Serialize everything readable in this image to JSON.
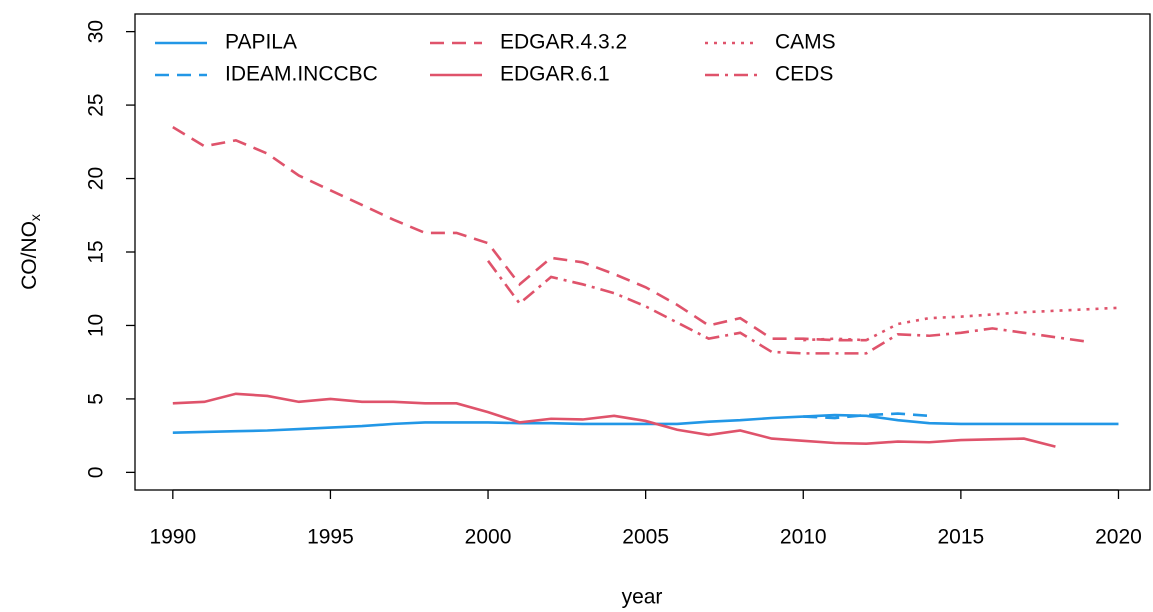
{
  "chart_data": {
    "type": "line",
    "xlabel": "year",
    "ylabel_parts": [
      "CO/NO",
      "x"
    ],
    "x": [
      1990,
      1991,
      1992,
      1993,
      1994,
      1995,
      1996,
      1997,
      1998,
      1999,
      2000,
      2001,
      2002,
      2003,
      2004,
      2005,
      2006,
      2007,
      2008,
      2009,
      2010,
      2011,
      2012,
      2013,
      2014,
      2015,
      2016,
      2017,
      2018,
      2019,
      2020
    ],
    "xlim": [
      1988.8,
      2021.0
    ],
    "xticks": [
      1990,
      1995,
      2000,
      2005,
      2010,
      2015,
      2020
    ],
    "ylim": [
      -1.2,
      31.2
    ],
    "yticks": [
      0,
      5,
      10,
      15,
      20,
      25,
      30
    ],
    "legend": "top-left",
    "series": [
      {
        "name": "PAPILA",
        "color": "#2297e6",
        "linestyle": "solid",
        "values": [
          2.7,
          2.75,
          2.8,
          2.85,
          2.95,
          3.05,
          3.15,
          3.3,
          3.4,
          3.4,
          3.4,
          3.35,
          3.35,
          3.3,
          3.3,
          3.3,
          3.3,
          3.45,
          3.55,
          3.7,
          3.8,
          3.9,
          3.85,
          3.55,
          3.35,
          3.3,
          3.3,
          3.3,
          3.3,
          3.3,
          3.3
        ]
      },
      {
        "name": "IDEAM.INCCBC",
        "color": "#2297e6",
        "linestyle": "dashed",
        "values": [
          null,
          null,
          null,
          null,
          null,
          null,
          null,
          null,
          null,
          null,
          null,
          null,
          null,
          null,
          null,
          null,
          null,
          null,
          null,
          null,
          3.8,
          3.7,
          3.9,
          4.0,
          3.85,
          null,
          null,
          null,
          null,
          null,
          null
        ]
      },
      {
        "name": "EDGAR.4.3.2",
        "color": "#df536b",
        "linestyle": "dashed",
        "values": [
          23.5,
          22.2,
          22.6,
          21.7,
          20.2,
          19.2,
          18.2,
          17.2,
          16.3,
          16.3,
          15.6,
          12.8,
          14.6,
          14.3,
          13.5,
          12.6,
          11.4,
          10.0,
          10.5,
          9.1,
          9.1,
          9.0,
          9.0,
          null,
          null,
          null,
          null,
          null,
          null,
          null,
          null
        ]
      },
      {
        "name": "EDGAR.6.1",
        "color": "#df536b",
        "linestyle": "solid",
        "values": [
          4.7,
          4.8,
          5.35,
          5.2,
          4.8,
          5.0,
          4.8,
          4.8,
          4.7,
          4.7,
          4.1,
          3.4,
          3.65,
          3.6,
          3.85,
          3.5,
          2.9,
          2.55,
          2.85,
          2.3,
          2.15,
          2.0,
          1.95,
          2.1,
          2.05,
          2.2,
          2.25,
          2.3,
          1.75,
          null,
          null
        ]
      },
      {
        "name": "CAMS",
        "color": "#df536b",
        "linestyle": "dotted",
        "values": [
          null,
          null,
          null,
          null,
          null,
          null,
          null,
          null,
          null,
          null,
          null,
          null,
          null,
          null,
          null,
          null,
          null,
          null,
          null,
          null,
          9.0,
          9.1,
          9.0,
          10.1,
          10.5,
          10.6,
          10.75,
          10.9,
          11.0,
          11.1,
          11.2
        ]
      },
      {
        "name": "CEDS",
        "color": "#df536b",
        "linestyle": "dashdot",
        "values": [
          null,
          null,
          null,
          null,
          null,
          null,
          null,
          null,
          null,
          null,
          14.4,
          11.5,
          13.3,
          12.8,
          12.2,
          11.3,
          10.2,
          9.1,
          9.5,
          8.2,
          8.1,
          8.1,
          8.1,
          9.4,
          9.3,
          9.5,
          9.8,
          9.5,
          9.2,
          8.9,
          null
        ]
      }
    ]
  }
}
